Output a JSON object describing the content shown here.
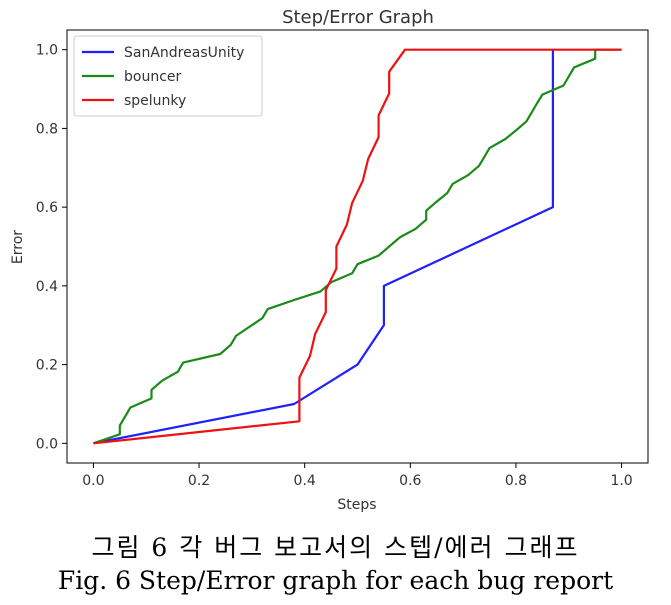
{
  "chart_data": {
    "type": "line",
    "title": "Step/Error Graph",
    "xlabel": "Steps",
    "ylabel": "Error",
    "xlim": [
      -0.05,
      1.05
    ],
    "ylim": [
      -0.05,
      1.05
    ],
    "xticks": [
      "0.0",
      "0.2",
      "0.4",
      "0.6",
      "0.8",
      "1.0"
    ],
    "yticks": [
      "0.0",
      "0.2",
      "0.4",
      "0.6",
      "0.8",
      "1.0"
    ],
    "grid": false,
    "legend_position": "top-left",
    "series": [
      {
        "name": "SanAndreasUnity",
        "color": "#1f1fff",
        "points": [
          [
            0.0,
            0.0
          ],
          [
            0.38,
            0.1
          ],
          [
            0.5,
            0.2
          ],
          [
            0.55,
            0.3
          ],
          [
            0.55,
            0.4
          ],
          [
            0.87,
            0.6
          ],
          [
            0.87,
            1.0
          ]
        ]
      },
      {
        "name": "bouncer",
        "color": "#1a8a1a",
        "points": [
          [
            0.0,
            0.0
          ],
          [
            0.05,
            0.023
          ],
          [
            0.05,
            0.045
          ],
          [
            0.06,
            0.068
          ],
          [
            0.07,
            0.091
          ],
          [
            0.11,
            0.114
          ],
          [
            0.11,
            0.136
          ],
          [
            0.13,
            0.159
          ],
          [
            0.16,
            0.182
          ],
          [
            0.17,
            0.205
          ],
          [
            0.24,
            0.227
          ],
          [
            0.26,
            0.25
          ],
          [
            0.27,
            0.273
          ],
          [
            0.32,
            0.318
          ],
          [
            0.33,
            0.341
          ],
          [
            0.38,
            0.364
          ],
          [
            0.43,
            0.386
          ],
          [
            0.45,
            0.409
          ],
          [
            0.49,
            0.432
          ],
          [
            0.5,
            0.455
          ],
          [
            0.54,
            0.477
          ],
          [
            0.56,
            0.5
          ],
          [
            0.58,
            0.523
          ],
          [
            0.61,
            0.545
          ],
          [
            0.63,
            0.568
          ],
          [
            0.63,
            0.591
          ],
          [
            0.65,
            0.614
          ],
          [
            0.67,
            0.636
          ],
          [
            0.68,
            0.659
          ],
          [
            0.71,
            0.682
          ],
          [
            0.73,
            0.705
          ],
          [
            0.74,
            0.727
          ],
          [
            0.75,
            0.75
          ],
          [
            0.78,
            0.773
          ],
          [
            0.8,
            0.795
          ],
          [
            0.82,
            0.818
          ],
          [
            0.83,
            0.841
          ],
          [
            0.84,
            0.864
          ],
          [
            0.85,
            0.886
          ],
          [
            0.89,
            0.909
          ],
          [
            0.9,
            0.932
          ],
          [
            0.91,
            0.955
          ],
          [
            0.95,
            0.977
          ],
          [
            0.95,
            1.0
          ],
          [
            1.0,
            1.0
          ]
        ]
      },
      {
        "name": "spelunky",
        "color": "#ee1111",
        "points": [
          [
            0.0,
            0.0
          ],
          [
            0.39,
            0.056
          ],
          [
            0.39,
            0.111
          ],
          [
            0.39,
            0.167
          ],
          [
            0.41,
            0.222
          ],
          [
            0.42,
            0.278
          ],
          [
            0.44,
            0.333
          ],
          [
            0.44,
            0.389
          ],
          [
            0.46,
            0.444
          ],
          [
            0.46,
            0.5
          ],
          [
            0.48,
            0.556
          ],
          [
            0.49,
            0.611
          ],
          [
            0.51,
            0.667
          ],
          [
            0.52,
            0.722
          ],
          [
            0.54,
            0.778
          ],
          [
            0.54,
            0.833
          ],
          [
            0.56,
            0.889
          ],
          [
            0.56,
            0.944
          ],
          [
            0.59,
            1.0
          ],
          [
            1.0,
            1.0
          ]
        ]
      }
    ]
  },
  "caption": {
    "korean": "그림 6 각 버그 보고서의 스텝/에러 그래프",
    "english": "Fig. 6 Step/Error graph for each bug report"
  }
}
